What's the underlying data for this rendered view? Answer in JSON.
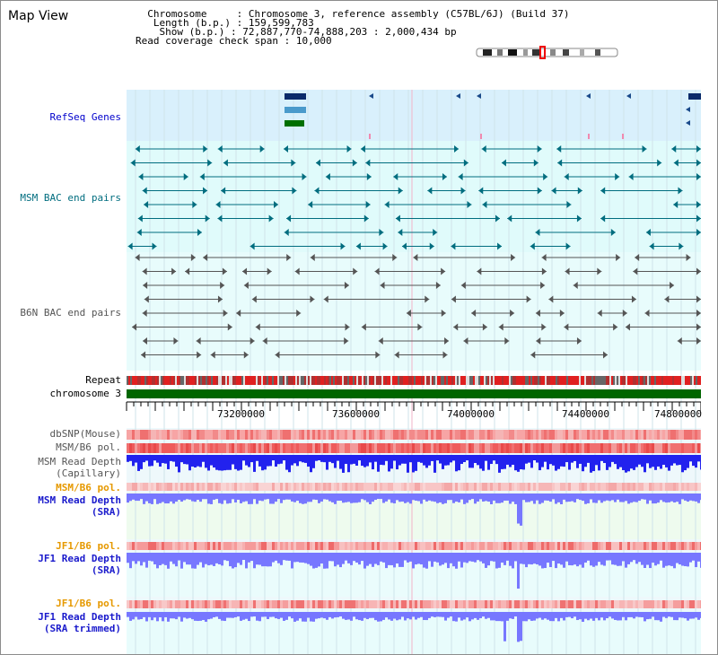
{
  "page": {
    "title": "Map View"
  },
  "info": {
    "chromosome_key": "Chromosome",
    "chromosome_val": "Chromosome 3, reference assembly (C57BL/6J) (Build 37)",
    "length_key": "Length (b.p.)",
    "length_val": "159,599,783",
    "show_key": "Show (b.p.)",
    "show_val": "72,887,770-74,888,203 : 2,000,434 bp",
    "read_key": "Read coverage check span",
    "read_val": "10,000"
  },
  "tracks": {
    "refseq": "RefSeq Genes",
    "msm_bac": "MSM BAC end pairs",
    "b6n_bac": "B6N BAC end pairs",
    "repeat": "Repeat",
    "chromosome": "chromosome 3",
    "dbsnp": "dbSNP(Mouse)",
    "msm_b6_pol_1": "MSM/B6 pol.",
    "msm_depth_cap_1": "MSM Read Depth",
    "msm_depth_cap_2": "(Capillary)",
    "msm_b6_pol_2": "MSM/B6 pol.",
    "msm_depth_sra_1": "MSM Read Depth",
    "msm_depth_sra_2": "(SRA)",
    "jf1_b6_pol_1": "JF1/B6 pol.",
    "jf1_depth_sra_1": "JF1 Read Depth",
    "jf1_depth_sra_2": "(SRA)",
    "jf1_b6_pol_2": "JF1/B6 pol.",
    "jf1_depth_trim_1": "JF1 Read Depth",
    "jf1_depth_trim_2": "(SRA trimmed)"
  },
  "axis": {
    "ticks": [
      "73200000",
      "73600000",
      "74000000",
      "74400000",
      "74800000"
    ]
  },
  "colors": {
    "refseq_bg": "#d9f0fc",
    "bac_bg": "#e0fbfb",
    "msm_bac": "#006d7f",
    "b6n_bac": "#555555",
    "chromosome": "#006600",
    "depth_cap": "#2222ee",
    "depth_sra": "#7777ff"
  }
}
